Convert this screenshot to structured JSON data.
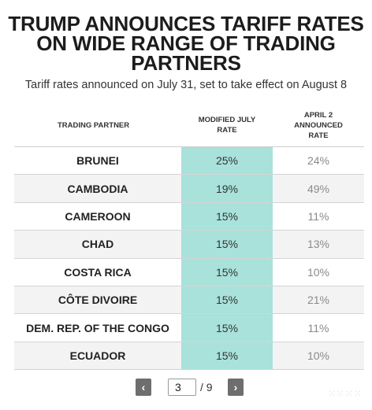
{
  "title": "TRUMP ANNOUNCES TARIFF RATES ON WIDE RANGE OF TRADING PARTNERS",
  "subtitle": "Tariff rates announced on July 31, set to take effect on August 8",
  "table": {
    "headers": [
      "TRADING PARTNER",
      "MODIFIED JULY\nRATE",
      "APRIL 2\nANNOUNCED\nRATE"
    ],
    "rows": [
      {
        "partner": "BRUNEI",
        "modified": "25%",
        "april": "24%"
      },
      {
        "partner": "CAMBODIA",
        "modified": "19%",
        "april": "49%"
      },
      {
        "partner": "CAMEROON",
        "modified": "15%",
        "april": "11%"
      },
      {
        "partner": "CHAD",
        "modified": "15%",
        "april": "13%"
      },
      {
        "partner": "COSTA RICA",
        "modified": "15%",
        "april": "10%"
      },
      {
        "partner": "CÔTE DIVOIRE",
        "modified": "15%",
        "april": "21%"
      },
      {
        "partner": "DEM. REP. OF THE CONGO",
        "modified": "15%",
        "april": "11%"
      },
      {
        "partner": "ECUADOR",
        "modified": "15%",
        "april": "10%"
      }
    ],
    "highlight_color": "#a8e2da"
  },
  "pagination": {
    "prev_label": "‹",
    "next_label": "›",
    "current_page": "3",
    "total_label": "/ 9"
  },
  "watermark": "⁙⁙⁙⁙"
}
